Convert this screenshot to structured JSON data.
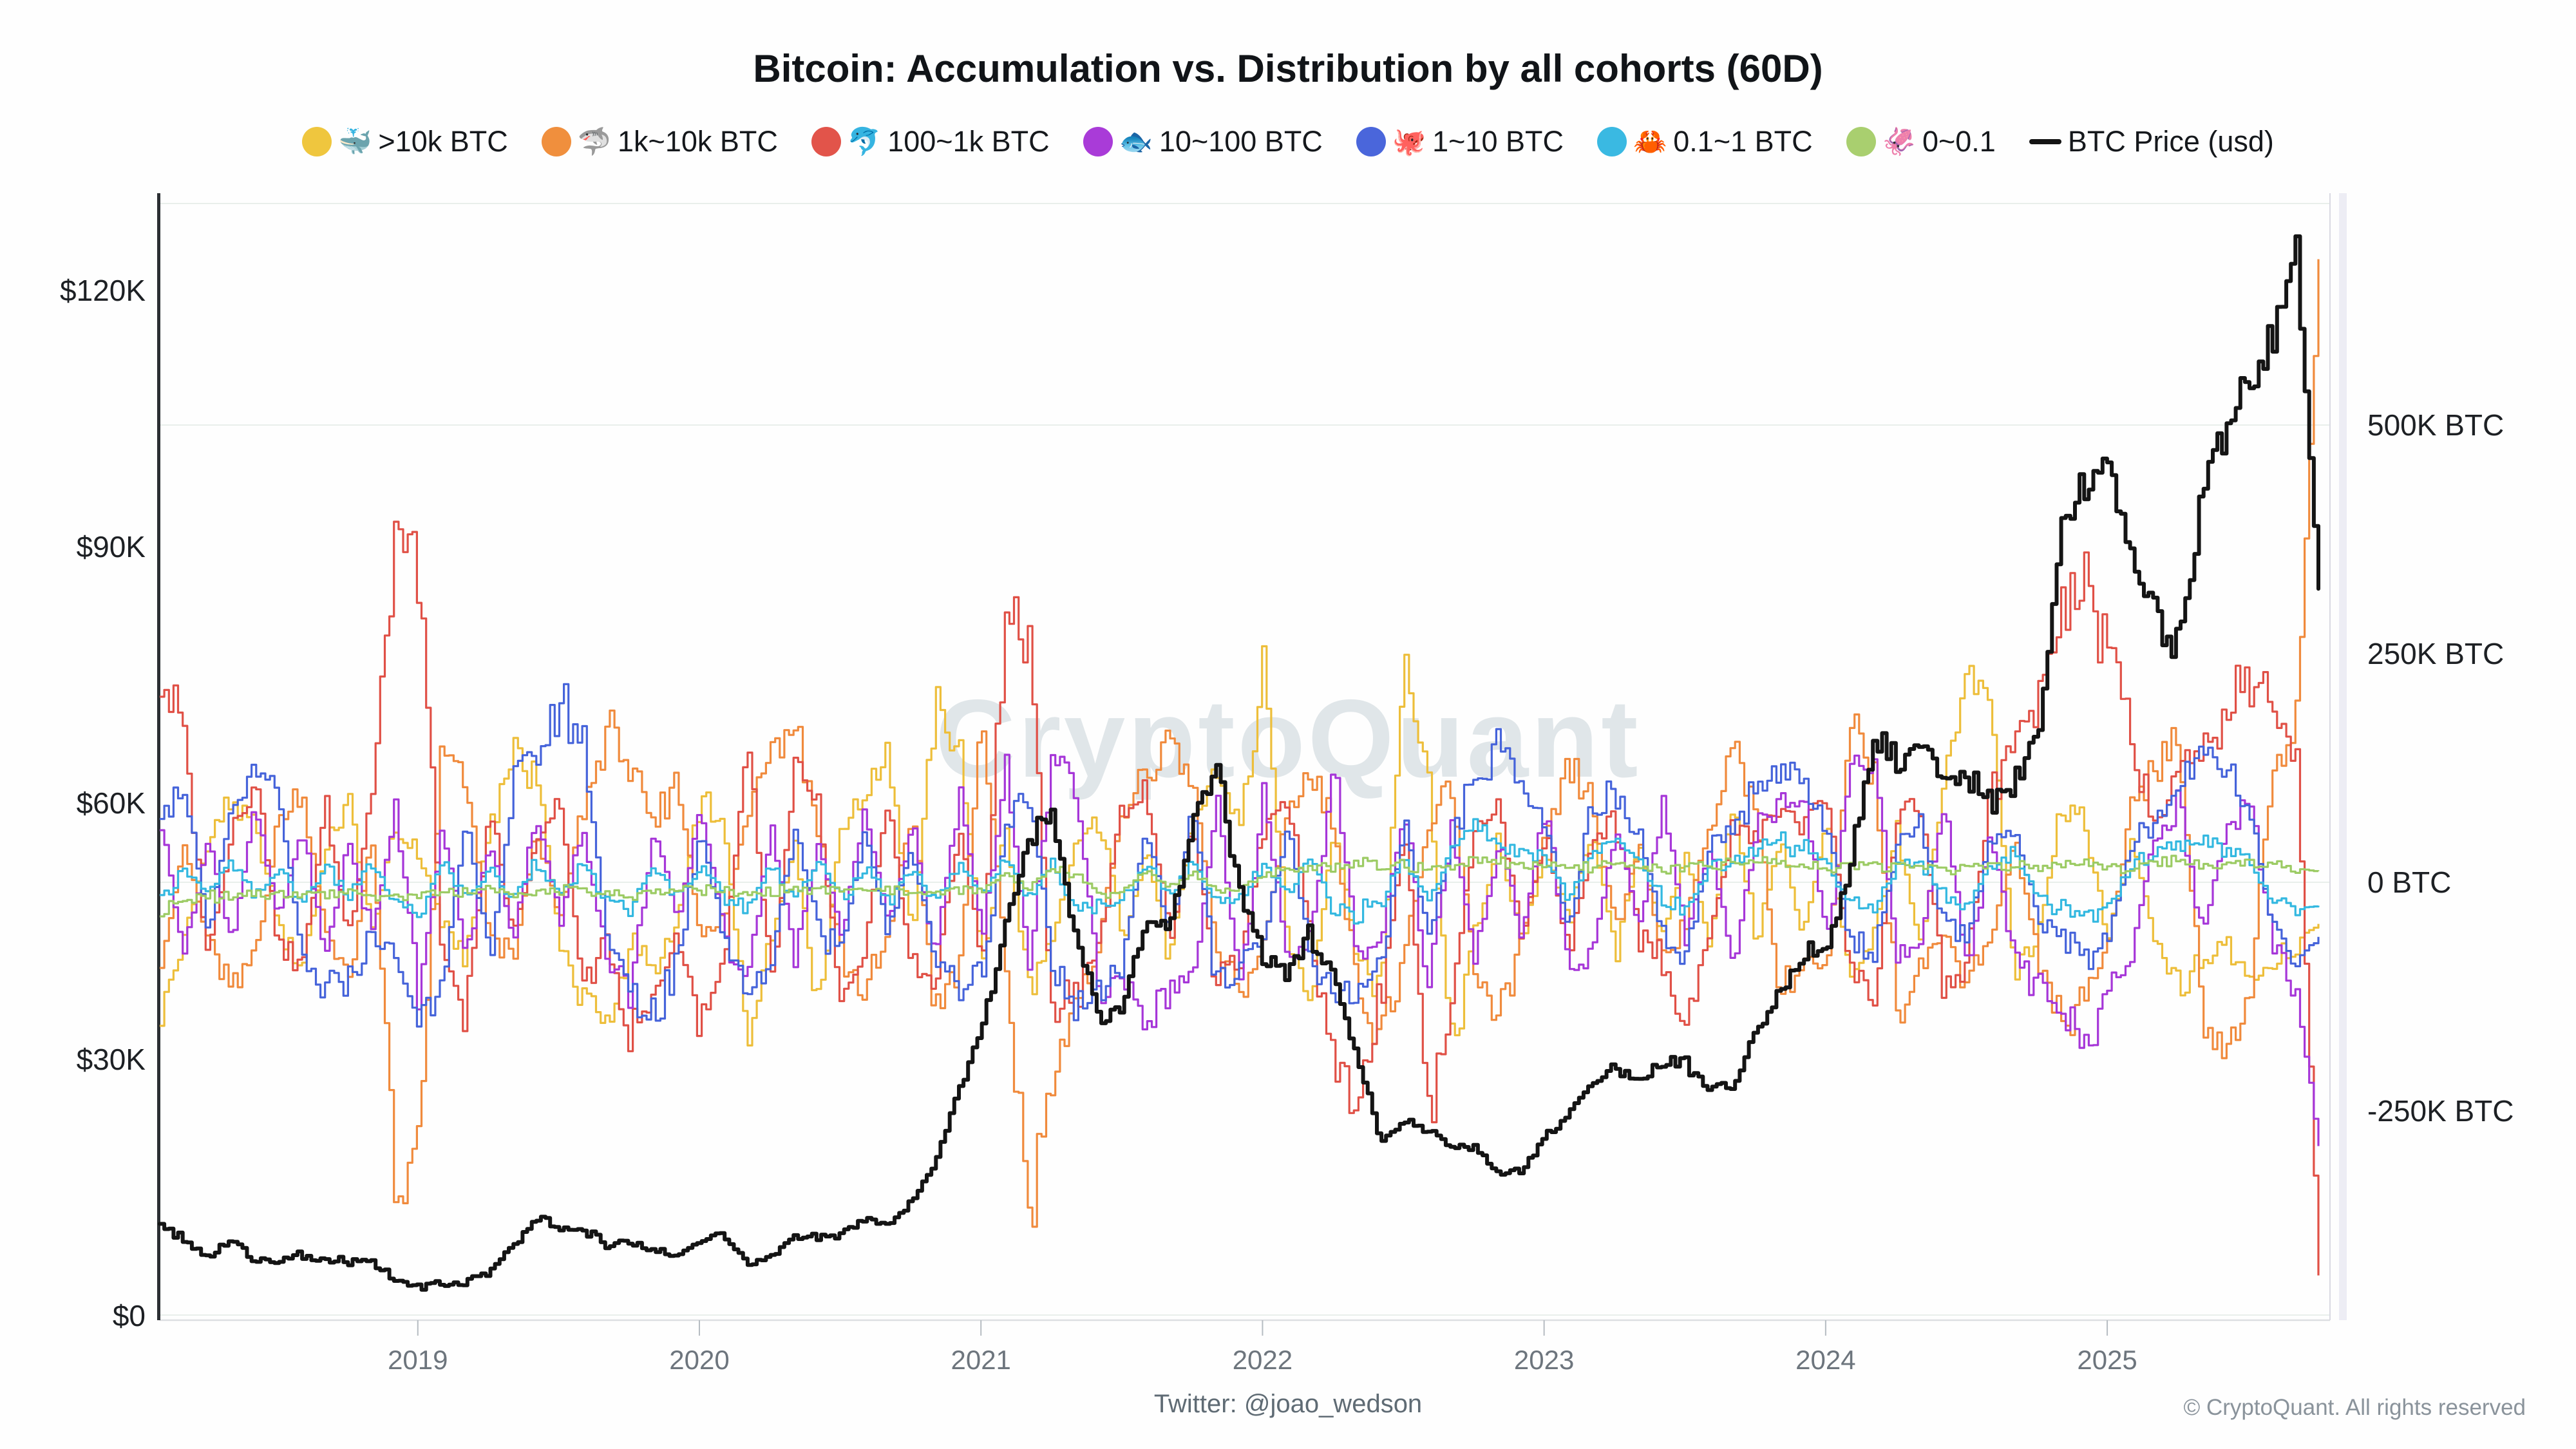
{
  "title": "Bitcoin: Accumulation vs. Distribution by all cohorts (60D)",
  "watermark": "CryptoQuant",
  "legend": {
    "items": [
      {
        "icon": "whale-icon",
        "emoji": "🐳",
        "label": ">10k BTC",
        "color": "#EFC63E"
      },
      {
        "icon": "shark-icon",
        "emoji": "🦈",
        "label": "1k~10k BTC",
        "color": "#F08F3D"
      },
      {
        "icon": "dolphin-icon",
        "emoji": "🐬",
        "label": "100~1k BTC",
        "color": "#E2544A"
      },
      {
        "icon": "fish-icon",
        "emoji": "🐟",
        "label": "10~100 BTC",
        "color": "#A93BD8"
      },
      {
        "icon": "octopus-icon",
        "emoji": "🐙",
        "label": "1~10 BTC",
        "color": "#4A66DB"
      },
      {
        "icon": "crab-icon",
        "emoji": "🦀",
        "label": "0.1~1 BTC",
        "color": "#3AB9E2"
      },
      {
        "icon": "squid-icon",
        "emoji": "🦑",
        "label": "0~0.1",
        "color": "#A9CF6F"
      }
    ],
    "price_item": {
      "label": "BTC Price (usd)",
      "color": "#141414"
    }
  },
  "axes": {
    "left": {
      "labels": [
        "$120K",
        "$90K",
        "$60K",
        "$30K",
        "$0"
      ],
      "values_k_usd": [
        120,
        90,
        60,
        30,
        0
      ]
    },
    "right": {
      "labels": [
        "500K BTC",
        "250K BTC",
        "0 BTC",
        "-250K BTC"
      ],
      "values_k_btc": [
        500,
        250,
        0,
        -250
      ]
    },
    "x": {
      "labels": [
        "2019",
        "2020",
        "2021",
        "2022",
        "2023",
        "2024",
        "2025"
      ]
    }
  },
  "footer": {
    "caption": "Twitter: @joao_wedson",
    "copyright": "© CryptoQuant. All rights reserved"
  },
  "chart_data": {
    "type": "area",
    "title": "Bitcoin: Accumulation vs. Distribution by all cohorts (60D)",
    "x_start": "2018-02",
    "x_end": "2025-10",
    "sampling": "monthly",
    "cohort_unit": "thousand BTC (60D net accumulation/distribution, est.)",
    "price_unit": "thousand USD",
    "right_axis_range_k_btc": [
      -470,
      740
    ],
    "left_axis_range_k_usd": [
      0,
      130
    ],
    "grid": "faint horizontal at right-axis ticks",
    "legend_position": "top center",
    "series": [
      {
        "name": ">10k BTC",
        "border": "#EDBE3A",
        "fill": "#F6D97E",
        "values": [
          -150,
          -60,
          45,
          95,
          60,
          -45,
          -95,
          35,
          85,
          -55,
          60,
          30,
          -45,
          -85,
          65,
          140,
          120,
          -65,
          -130,
          -160,
          -65,
          -100,
          -45,
          90,
          60,
          -170,
          -60,
          45,
          -140,
          65,
          95,
          150,
          -65,
          200,
          160,
          -85,
          60,
          -120,
          -65,
          45,
          65,
          -55,
          35,
          -85,
          65,
          120,
          60,
          230,
          -60,
          -120,
          65,
          -85,
          -120,
          260,
          120,
          -180,
          -60,
          45,
          -65,
          35,
          -45,
          65,
          -85,
          45,
          -65,
          35,
          -65,
          85,
          -60,
          45,
          -55,
          65,
          -120,
          -65,
          60,
          -80,
          120,
          230,
          190,
          -100,
          -65,
          90,
          60,
          -65,
          45,
          -65,
          -120,
          -85,
          -65,
          -100,
          -85,
          -65,
          -45
        ]
      },
      {
        "name": "1k~10k BTC",
        "border": "#F08A3C",
        "fill": "#F7B184",
        "values": [
          -85,
          40,
          -65,
          -120,
          -80,
          65,
          105,
          -60,
          -100,
          45,
          -330,
          -280,
          155,
          105,
          -60,
          -85,
          60,
          -45,
          85,
          170,
          120,
          60,
          120,
          -60,
          -45,
          85,
          155,
          170,
          60,
          -85,
          -120,
          -60,
          85,
          -140,
          -105,
          190,
          -100,
          -350,
          -200,
          -150,
          -60,
          85,
          120,
          155,
          105,
          -85,
          -120,
          -65,
          85,
          120,
          60,
          -120,
          -165,
          -85,
          60,
          105,
          -100,
          -155,
          -60,
          45,
          120,
          85,
          -60,
          45,
          -85,
          -45,
          65,
          140,
          85,
          -130,
          -85,
          -100,
          170,
          120,
          -140,
          -85,
          -60,
          -105,
          -60,
          45,
          -85,
          -150,
          -120,
          -65,
          85,
          130,
          150,
          -150,
          -190,
          -120,
          130,
          155,
          690
        ]
      },
      {
        "name": "100~1k BTC",
        "border": "#E05046",
        "fill": "#F2938C",
        "values": [
          235,
          150,
          -85,
          60,
          120,
          -65,
          -100,
          85,
          -60,
          105,
          390,
          340,
          -85,
          -150,
          85,
          -60,
          45,
          85,
          -120,
          -65,
          -170,
          -120,
          -60,
          -150,
          -85,
          155,
          -120,
          120,
          85,
          -150,
          -60,
          85,
          -100,
          -105,
          60,
          -85,
          300,
          260,
          -150,
          -120,
          -65,
          85,
          105,
          -60,
          60,
          -120,
          -85,
          60,
          105,
          -60,
          -200,
          -220,
          -120,
          65,
          -250,
          -120,
          60,
          85,
          -60,
          60,
          -85,
          45,
          65,
          -60,
          -85,
          -160,
          -60,
          60,
          45,
          85,
          60,
          105,
          -100,
          -120,
          65,
          85,
          -120,
          -85,
          105,
          150,
          200,
          280,
          320,
          250,
          150,
          65,
          120,
          150,
          185,
          230,
          180,
          150,
          -430
        ]
      },
      {
        "name": "10~100 BTC",
        "border": "#A636D8",
        "fill": "#C77FE6",
        "values": [
          60,
          -80,
          45,
          -60,
          80,
          -45,
          60,
          -80,
          45,
          -60,
          85,
          -120,
          60,
          -85,
          45,
          -60,
          80,
          -45,
          60,
          -85,
          -120,
          60,
          -45,
          85,
          -60,
          -100,
          60,
          -85,
          45,
          -60,
          80,
          -45,
          60,
          -85,
          100,
          -60,
          120,
          -85,
          130,
          100,
          -120,
          -105,
          -150,
          -120,
          -100,
          85,
          -120,
          100,
          -85,
          -60,
          120,
          -85,
          -60,
          85,
          -120,
          60,
          -85,
          45,
          -60,
          85,
          -100,
          -85,
          60,
          -45,
          85,
          -60,
          45,
          -85,
          60,
          85,
          100,
          -60,
          120,
          140,
          -85,
          -60,
          85,
          -100,
          60,
          -85,
          -120,
          -150,
          -180,
          -120,
          -85,
          60,
          85,
          -60,
          60,
          85,
          -60,
          -120,
          -290
        ]
      },
      {
        "name": "1~10 BTC",
        "border": "#4563DA",
        "fill": "#96A4E9",
        "values": [
          85,
          100,
          -60,
          85,
          120,
          100,
          -85,
          -120,
          -100,
          -60,
          -85,
          -150,
          -100,
          60,
          -85,
          100,
          145,
          190,
          160,
          -60,
          -120,
          -150,
          -85,
          60,
          -60,
          -120,
          -85,
          60,
          -45,
          -85,
          60,
          -60,
          45,
          -85,
          -120,
          -100,
          60,
          100,
          -85,
          -140,
          -120,
          -85,
          60,
          -60,
          85,
          -120,
          -85,
          -60,
          60,
          -85,
          -120,
          -140,
          -85,
          60,
          -60,
          45,
          120,
          150,
          100,
          60,
          -60,
          85,
          100,
          60,
          -60,
          -85,
          45,
          60,
          100,
          130,
          110,
          60,
          -60,
          -85,
          45,
          60,
          -45,
          -60,
          45,
          60,
          -45,
          -60,
          -85,
          -60,
          45,
          60,
          100,
          150,
          130,
          85,
          -60,
          -85,
          -60
        ]
      },
      {
        "name": "0.1~1 BTC",
        "border": "#33B8E0",
        "fill": "#8CD8EF",
        "values": [
          -25,
          18,
          -15,
          22,
          -18,
          15,
          -22,
          18,
          -15,
          20,
          -28,
          -35,
          22,
          -18,
          15,
          -20,
          25,
          -15,
          18,
          -22,
          -30,
          18,
          -15,
          20,
          -15,
          -30,
          18,
          -15,
          20,
          -18,
          15,
          -20,
          18,
          -25,
          22,
          -18,
          30,
          -22,
          25,
          -30,
          -25,
          -18,
          22,
          -15,
          20,
          -25,
          -18,
          20,
          -15,
          25,
          -30,
          -35,
          -22,
          28,
          -18,
          35,
          60,
          45,
          30,
          25,
          -18,
          30,
          45,
          25,
          -20,
          -28,
          18,
          25,
          40,
          50,
          35,
          20,
          -22,
          -30,
          18,
          25,
          -18,
          -25,
          20,
          28,
          -18,
          -30,
          -35,
          -25,
          20,
          30,
          40,
          50,
          38,
          25,
          -20,
          -30,
          -25
        ]
      },
      {
        "name": "0~0.1",
        "border": "#9CCB64",
        "fill": "#CCE2A2",
        "values": [
          -30,
          -22,
          -15,
          -18,
          -12,
          -15,
          -10,
          -14,
          -10,
          -12,
          -18,
          -15,
          -10,
          -12,
          -8,
          -10,
          -12,
          -8,
          -10,
          -12,
          -15,
          -10,
          -8,
          -10,
          -8,
          -15,
          -10,
          -8,
          -10,
          -8,
          -10,
          -8,
          -10,
          -12,
          -8,
          -10,
          12,
          -8,
          15,
          10,
          -12,
          -10,
          14,
          -8,
          12,
          -10,
          -8,
          10,
          14,
          12,
          18,
          22,
          15,
          20,
          14,
          18,
          25,
          22,
          18,
          20,
          15,
          18,
          22,
          16,
          14,
          18,
          15,
          20,
          24,
          20,
          18,
          16,
          20,
          22,
          15,
          18,
          14,
          16,
          18,
          20,
          15,
          18,
          22,
          18,
          15,
          20,
          24,
          20,
          18,
          22,
          18,
          15,
          12
        ]
      }
    ],
    "price": {
      "name": "BTC Price (usd)",
      "color": "#141414",
      "values": [
        10.5,
        8.8,
        7.0,
        8.6,
        6.6,
        6.4,
        7.1,
        6.6,
        6.4,
        6.3,
        3.9,
        3.5,
        3.7,
        3.9,
        5.2,
        7.8,
        11.5,
        10.3,
        10.1,
        8.3,
        8.6,
        7.6,
        7.2,
        8.6,
        9.4,
        6.0,
        7.1,
        9.1,
        9.3,
        9.5,
        11.4,
        10.8,
        13.2,
        17.8,
        26.5,
        33.5,
        45.5,
        56.0,
        59.0,
        44.0,
        34.5,
        36.5,
        46.5,
        44.5,
        59.0,
        64.0,
        49.5,
        41.5,
        40.0,
        44.5,
        39.5,
        30.5,
        20.5,
        22.5,
        22.0,
        19.5,
        20.0,
        16.5,
        16.8,
        21.0,
        23.5,
        27.5,
        29.0,
        27.0,
        29.8,
        29.5,
        26.5,
        26.8,
        33.5,
        37.5,
        42.5,
        43.0,
        52.0,
        68.0,
        64.5,
        66.5,
        62.5,
        63.0,
        59.5,
        62.0,
        68.5,
        91.0,
        97.5,
        101.0,
        89.0,
        83.0,
        77.5,
        96.0,
        105.0,
        110.0,
        114.0,
        124.0,
        85.0
      ]
    }
  }
}
